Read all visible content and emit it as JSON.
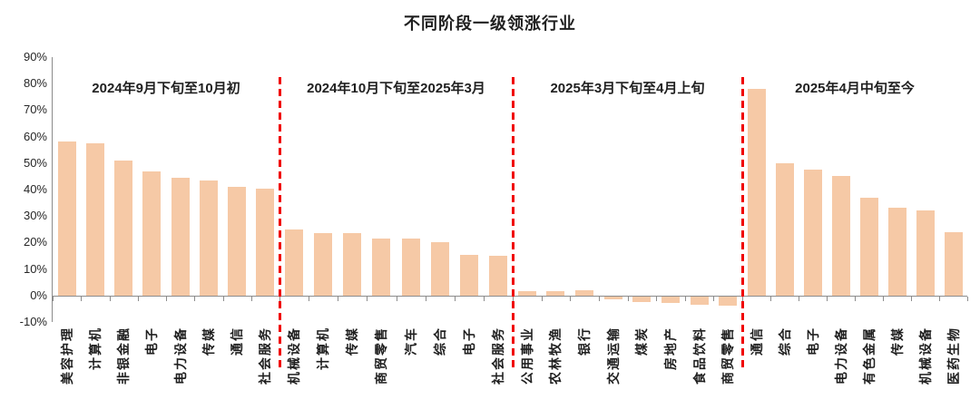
{
  "title": "不同阶段一级领涨行业",
  "chart_data": {
    "type": "bar",
    "title": "不同阶段一级领涨行业",
    "ylim": [
      -10,
      90
    ],
    "grid": false,
    "legend": "none",
    "y_tick_labels": [
      "90%",
      "80%",
      "70%",
      "60%",
      "50%",
      "40%",
      "30%",
      "20%",
      "10%",
      "0%",
      "-10%"
    ],
    "bar_color": "#f6c9a6",
    "divider_color": "#f00000",
    "axis_color": "#8c8c8c",
    "sections": [
      {
        "label": "2024年9月下旬至10月初",
        "categories": [
          "美容护理",
          "计算机",
          "非银金融",
          "电子",
          "电力设备",
          "传媒",
          "通信",
          "社会服务"
        ],
        "values": [
          58,
          57.5,
          51,
          47,
          44.5,
          43.5,
          41,
          40.5
        ]
      },
      {
        "label": "2024年10月下旬至2025年3月",
        "categories": [
          "机械设备",
          "计算机",
          "传媒",
          "商贸零售",
          "汽车",
          "综合",
          "电子",
          "社会服务"
        ],
        "values": [
          25,
          23.5,
          23.5,
          21.5,
          21.5,
          20,
          15.5,
          15
        ]
      },
      {
        "label": "2025年3月下旬至4月上旬",
        "categories": [
          "公用事业",
          "农林牧渔",
          "银行",
          "交通运输",
          "煤炭",
          "房地产",
          "食品饮料",
          "商贸零售"
        ],
        "values": [
          1.5,
          1.5,
          2,
          -1,
          -2,
          -2.5,
          -3,
          -3.5
        ]
      },
      {
        "label": "2025年4月中旬至今",
        "categories": [
          "通信",
          "综合",
          "电子",
          "电力设备",
          "有色金属",
          "传媒",
          "机械设备",
          "医药生物"
        ],
        "values": [
          78,
          50,
          47.5,
          45,
          37,
          33,
          32,
          24
        ]
      }
    ]
  }
}
